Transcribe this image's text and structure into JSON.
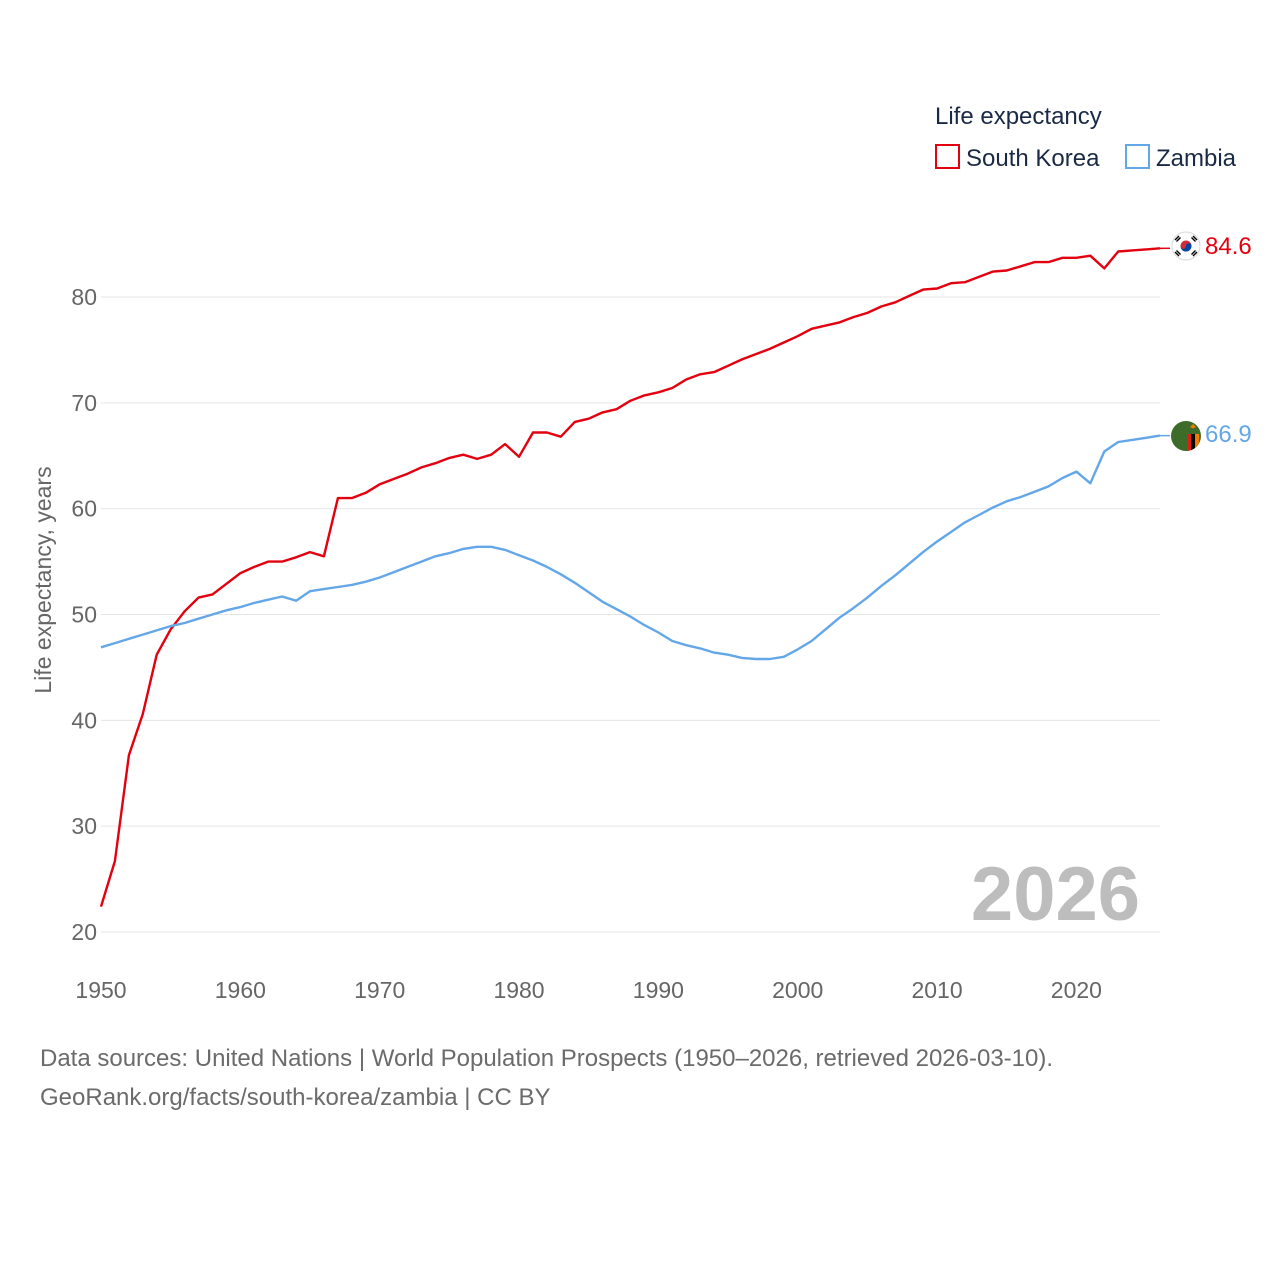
{
  "chart_data": {
    "type": "line",
    "legend_title": "Life expectancy",
    "ylabel": "Life expectancy, years",
    "xlabel": "",
    "xlim": [
      1950,
      2026
    ],
    "ylim": [
      20,
      85
    ],
    "x_ticks": [
      1950,
      1960,
      1970,
      1980,
      1990,
      2000,
      2010,
      2020
    ],
    "y_ticks": [
      20,
      30,
      40,
      50,
      60,
      70,
      80
    ],
    "year_label": "2026",
    "x": [
      1950,
      1951,
      1952,
      1953,
      1954,
      1955,
      1956,
      1957,
      1958,
      1959,
      1960,
      1961,
      1962,
      1963,
      1964,
      1965,
      1966,
      1967,
      1968,
      1969,
      1970,
      1971,
      1972,
      1973,
      1974,
      1975,
      1976,
      1977,
      1978,
      1979,
      1980,
      1981,
      1982,
      1983,
      1984,
      1985,
      1986,
      1987,
      1988,
      1989,
      1990,
      1991,
      1992,
      1993,
      1994,
      1995,
      1996,
      1997,
      1998,
      1999,
      2000,
      2001,
      2002,
      2003,
      2004,
      2005,
      2006,
      2007,
      2008,
      2009,
      2010,
      2011,
      2012,
      2013,
      2014,
      2015,
      2016,
      2017,
      2018,
      2019,
      2020,
      2021,
      2022,
      2023,
      2024,
      2025,
      2026
    ],
    "series": [
      {
        "name": "South Korea",
        "color": "#e3000f",
        "end_label": "84.6",
        "values": [
          22.4,
          26.7,
          36.7,
          40.6,
          46.2,
          48.6,
          50.3,
          51.6,
          51.9,
          52.9,
          53.9,
          54.5,
          55.0,
          55.0,
          55.4,
          55.9,
          55.5,
          61.0,
          61.0,
          61.5,
          62.3,
          62.8,
          63.3,
          63.9,
          64.3,
          64.8,
          65.1,
          64.7,
          65.1,
          66.1,
          64.9,
          67.2,
          67.2,
          66.8,
          68.2,
          68.5,
          69.1,
          69.4,
          70.2,
          70.7,
          71.0,
          71.4,
          72.2,
          72.7,
          72.9,
          73.5,
          74.1,
          74.6,
          75.1,
          75.7,
          76.3,
          77.0,
          77.3,
          77.6,
          78.1,
          78.5,
          79.1,
          79.5,
          80.1,
          80.7,
          80.8,
          81.3,
          81.4,
          81.9,
          82.4,
          82.5,
          82.9,
          83.3,
          83.3,
          83.7,
          83.7,
          83.9,
          82.7,
          84.3,
          84.4,
          84.5,
          84.6
        ]
      },
      {
        "name": "Zambia",
        "color": "#64a7e8",
        "end_label": "66.9",
        "values": [
          46.9,
          47.3,
          47.7,
          48.1,
          48.5,
          48.9,
          49.2,
          49.6,
          50.0,
          50.4,
          50.7,
          51.1,
          51.4,
          51.7,
          51.3,
          52.2,
          52.4,
          52.6,
          52.8,
          53.1,
          53.5,
          54.0,
          54.5,
          55.0,
          55.5,
          55.8,
          56.2,
          56.4,
          56.4,
          56.1,
          55.6,
          55.1,
          54.5,
          53.8,
          53.0,
          52.1,
          51.2,
          50.5,
          49.8,
          49.0,
          48.3,
          47.5,
          47.1,
          46.8,
          46.4,
          46.2,
          45.9,
          45.8,
          45.8,
          46.0,
          46.7,
          47.5,
          48.6,
          49.7,
          50.6,
          51.6,
          52.7,
          53.7,
          54.8,
          55.9,
          56.9,
          57.8,
          58.7,
          59.4,
          60.1,
          60.7,
          61.1,
          61.6,
          62.1,
          62.9,
          63.5,
          62.4,
          65.4,
          66.3,
          66.5,
          66.7,
          66.9
        ]
      }
    ]
  },
  "footer": {
    "source_line": "Data sources: United Nations | World Population Prospects (1950–2026, retrieved 2026-03-10).",
    "credit_line": "GeoRank.org/facts/south-korea/zambia | CC BY"
  }
}
